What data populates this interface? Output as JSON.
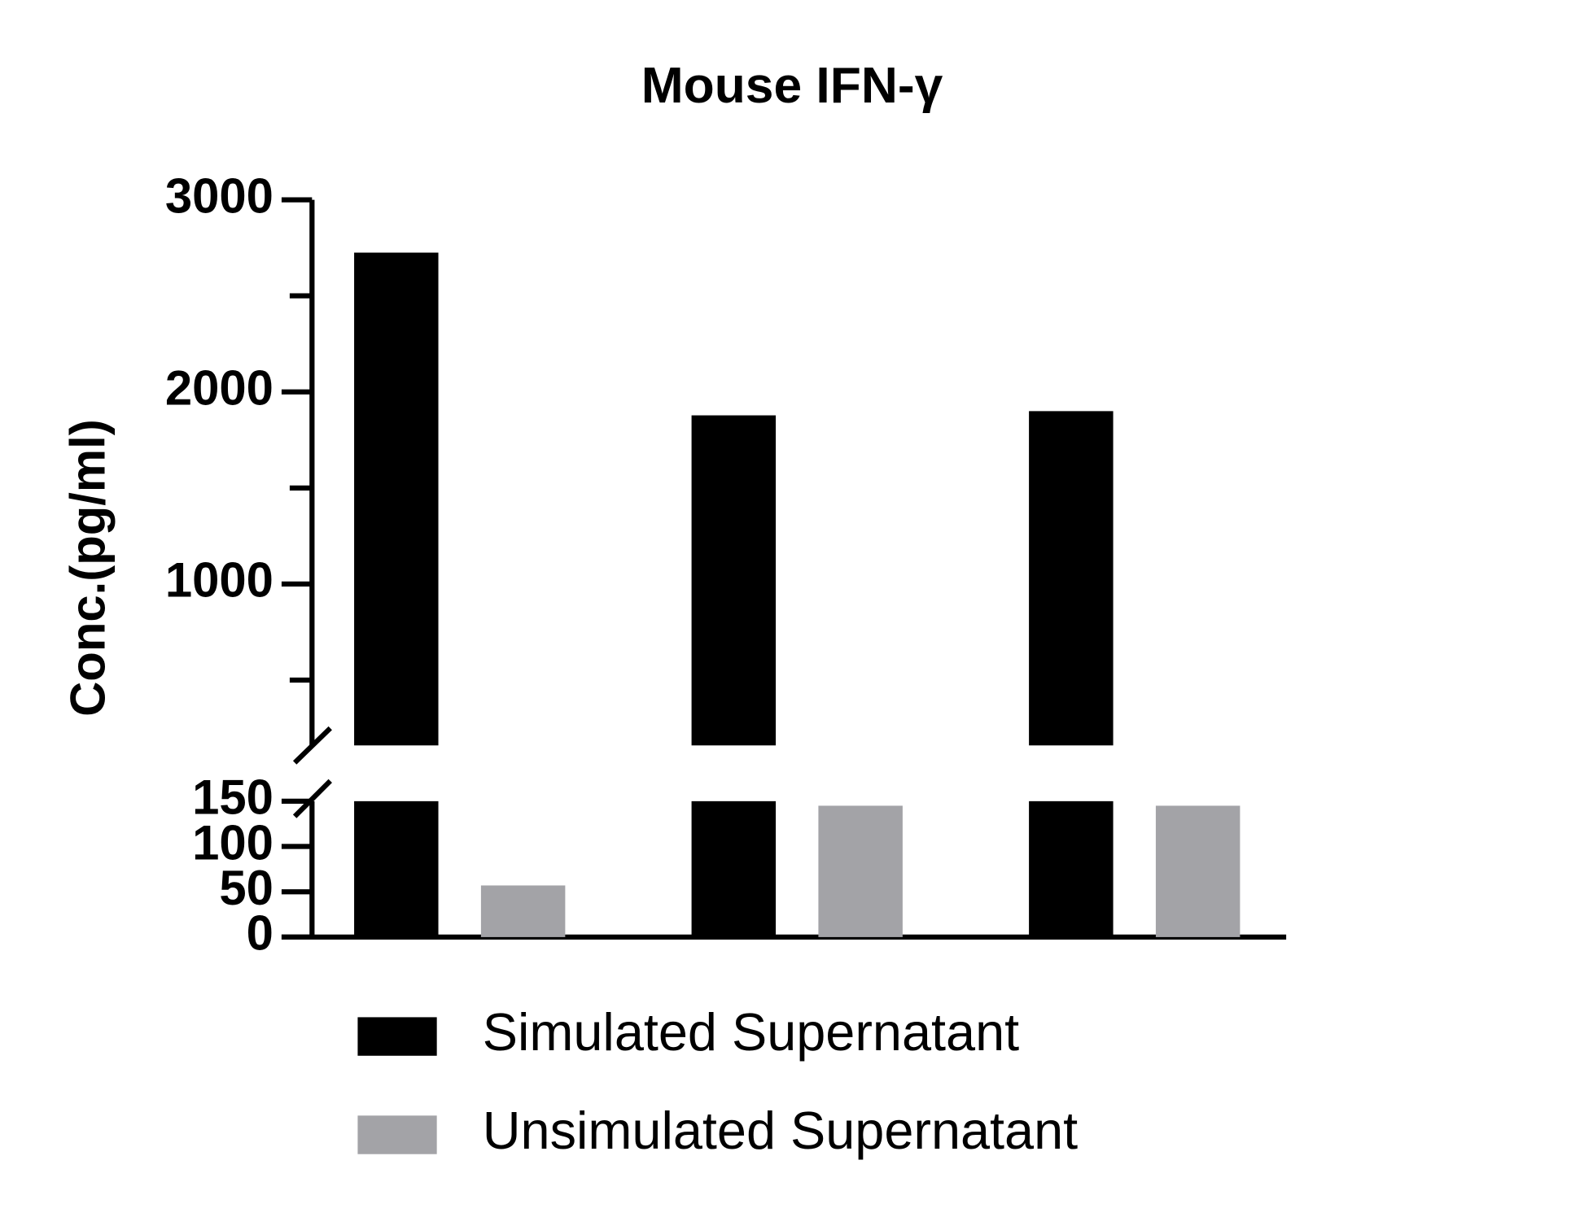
{
  "chart_data": {
    "type": "broken-bar",
    "title": "Mouse IFN-γ",
    "y_label": "Conc.(pg/ml)",
    "categories": [
      null,
      null,
      null
    ],
    "series": [
      {
        "name": "Simulated Supernatant",
        "color": "#000000",
        "values": [
          2725,
          1878,
          1900
        ]
      },
      {
        "name": "Unsimulated Supernatant",
        "color": "#a3a3a7",
        "values": [
          57,
          145,
          145
        ]
      }
    ],
    "ylim": [
      0,
      150
    ],
    "yticks": [
      0,
      50,
      100,
      150
    ],
    "ylim_upper": [
      160,
      3000
    ],
    "yticks_upper": [
      1000,
      2000,
      3000
    ],
    "yminorticks_upper": [
      500,
      1500,
      2500
    ],
    "legend": "bottom"
  }
}
